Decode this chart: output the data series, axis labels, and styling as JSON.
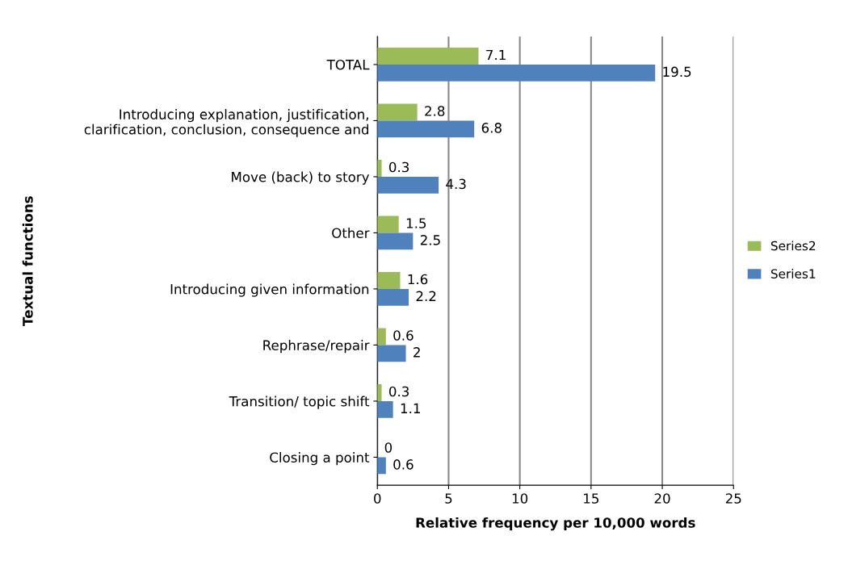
{
  "chart_data": {
    "type": "bar",
    "orientation": "horizontal",
    "ylabel": "Textual functions",
    "xlabel": "Relative frequency per 10,000 words",
    "categories": [
      "TOTAL",
      "Introducing explanation, justification,\nclarification, conclusion, consequence and",
      "Move (back) to story",
      "Other",
      "Introducing given information",
      "Rephrase/repair",
      "Transition/ topic shift",
      "Closing a point"
    ],
    "series": [
      {
        "name": "Series2",
        "color": "#9bbb59",
        "values": [
          7.1,
          2.8,
          0.3,
          1.5,
          1.6,
          0.6,
          0.3,
          0
        ]
      },
      {
        "name": "Series1",
        "color": "#4f81bd",
        "values": [
          19.5,
          6.8,
          4.3,
          2.5,
          2.2,
          2,
          1.1,
          0.6
        ]
      }
    ],
    "xlim": [
      0,
      25
    ],
    "xticks": [
      0,
      5,
      10,
      15,
      20,
      25
    ],
    "grid": "x",
    "legend": "right",
    "data_labels": true
  }
}
